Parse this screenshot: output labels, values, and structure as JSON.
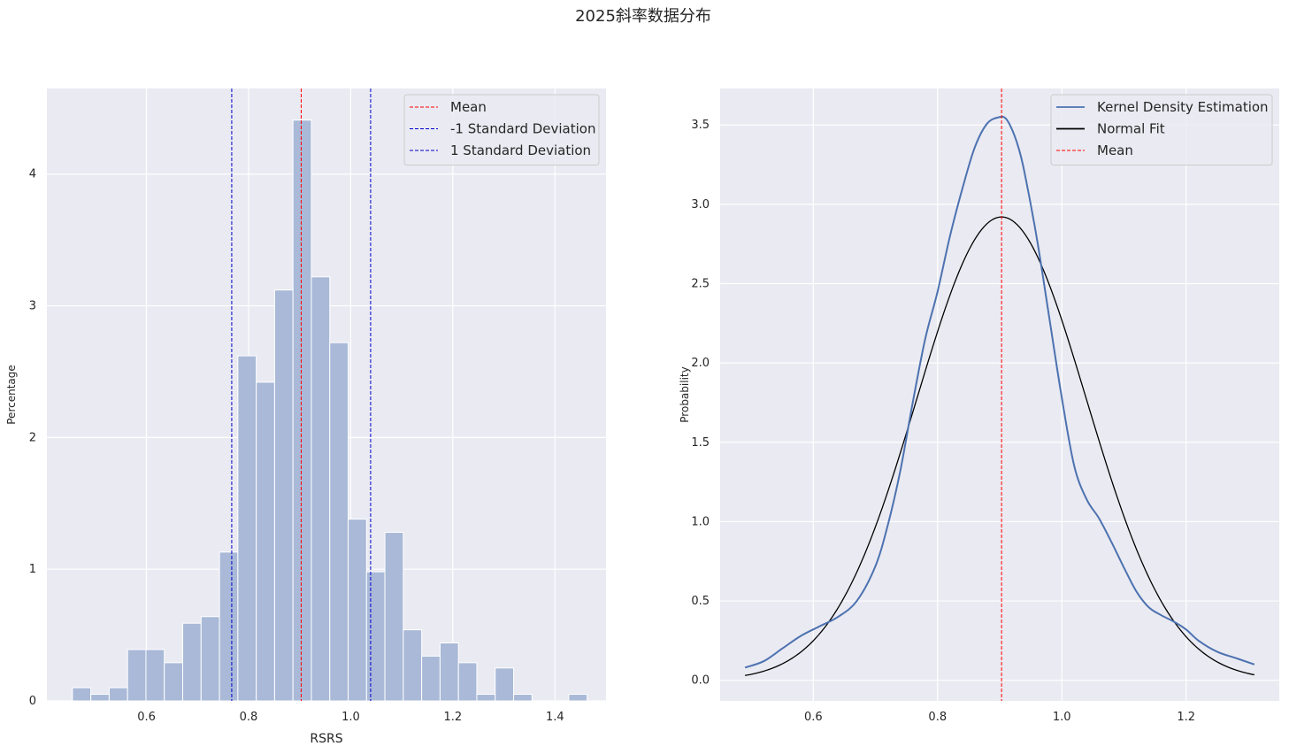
{
  "figure": {
    "title": "2025斜率数据分布"
  },
  "colors": {
    "axes_bg": "#eaeaf2",
    "grid": "#ffffff",
    "hist_bar": "#a9b9d7",
    "kde": "#4c72b0",
    "normal": "#000000",
    "mean": "#ff0000",
    "std": "#0000cc"
  },
  "chart_data": [
    {
      "type": "bar",
      "subtype": "histogram",
      "title": "",
      "xlabel": "RSRS",
      "ylabel": "Percentage",
      "xlim": [
        0.405,
        1.5
      ],
      "ylim": [
        0,
        4.65
      ],
      "xticks": [
        0.6,
        0.8,
        1.0,
        1.2,
        1.4
      ],
      "xtick_labels": [
        "0.6",
        "0.8",
        "1.0",
        "1.2",
        "1.4"
      ],
      "yticks": [
        0,
        1,
        2,
        3,
        4
      ],
      "ytick_labels": [
        "0",
        "1",
        "2",
        "3",
        "4"
      ],
      "grid": true,
      "bin_edges": [
        0.455,
        0.491,
        0.527,
        0.563,
        0.599,
        0.635,
        0.671,
        0.707,
        0.743,
        0.779,
        0.815,
        0.851,
        0.887,
        0.923,
        0.959,
        0.995,
        1.031,
        1.067,
        1.103,
        1.139,
        1.175,
        1.211,
        1.247,
        1.283,
        1.319,
        1.355,
        1.391,
        1.427,
        1.463
      ],
      "values": [
        0.1,
        0.05,
        0.1,
        0.39,
        0.39,
        0.29,
        0.59,
        0.64,
        1.13,
        2.62,
        2.42,
        3.12,
        4.41,
        3.22,
        2.72,
        1.38,
        0.98,
        1.28,
        0.54,
        0.34,
        0.44,
        0.29,
        0.05,
        0.25,
        0.05,
        0,
        0,
        0.05
      ],
      "vlines": [
        {
          "name": "Mean",
          "x": 0.903,
          "color": "#ff0000"
        },
        {
          "name": "-1 Standard Deviation",
          "x": 0.767,
          "color": "#0000cc"
        },
        {
          "name": "1 Standard Deviation",
          "x": 1.039,
          "color": "#0000cc"
        }
      ],
      "legend": {
        "position": "upper-right",
        "entries": [
          {
            "label": "Mean",
            "color": "#ff0000",
            "style": "dashed"
          },
          {
            "label": "-1 Standard Deviation",
            "color": "#0000cc",
            "style": "dashed"
          },
          {
            "label": "1 Standard Deviation",
            "color": "#0000cc",
            "style": "dashed"
          }
        ]
      }
    },
    {
      "type": "line",
      "title": "",
      "xlabel": "",
      "ylabel": "Probability",
      "xlim": [
        0.45,
        1.35
      ],
      "ylim": [
        -0.13,
        3.73
      ],
      "xticks": [
        0.6,
        0.8,
        1.0,
        1.2
      ],
      "xtick_labels": [
        "0.6",
        "0.8",
        "1.0",
        "1.2"
      ],
      "yticks": [
        0.0,
        0.5,
        1.0,
        1.5,
        2.0,
        2.5,
        3.0,
        3.5
      ],
      "ytick_labels": [
        "0.0",
        "0.5",
        "1.0",
        "1.5",
        "2.0",
        "2.5",
        "3.0",
        "3.5"
      ],
      "grid": true,
      "series": [
        {
          "name": "Kernel Density Estimation",
          "color": "#4c72b0",
          "x": [
            0.49,
            0.52,
            0.55,
            0.58,
            0.61,
            0.64,
            0.67,
            0.7,
            0.72,
            0.74,
            0.76,
            0.78,
            0.8,
            0.82,
            0.84,
            0.86,
            0.88,
            0.9,
            0.91,
            0.92,
            0.93,
            0.94,
            0.96,
            0.98,
            1.0,
            1.02,
            1.04,
            1.06,
            1.08,
            1.1,
            1.12,
            1.14,
            1.16,
            1.18,
            1.2,
            1.22,
            1.25,
            1.28,
            1.31
          ],
          "values": [
            0.08,
            0.12,
            0.2,
            0.28,
            0.34,
            0.4,
            0.5,
            0.72,
            0.98,
            1.32,
            1.75,
            2.15,
            2.45,
            2.8,
            3.1,
            3.36,
            3.51,
            3.55,
            3.54,
            3.47,
            3.36,
            3.2,
            2.78,
            2.28,
            1.78,
            1.35,
            1.14,
            1.02,
            0.87,
            0.71,
            0.56,
            0.46,
            0.41,
            0.37,
            0.32,
            0.25,
            0.18,
            0.14,
            0.1
          ]
        },
        {
          "name": "Normal Fit",
          "color": "#000000",
          "mean": 0.903,
          "std": 0.1366,
          "x_range": [
            0.49,
            1.31
          ]
        }
      ],
      "vlines": [
        {
          "name": "Mean",
          "x": 0.903,
          "color": "#ff0000"
        }
      ],
      "legend": {
        "position": "upper-right",
        "entries": [
          {
            "label": "Kernel Density Estimation",
            "color": "#4c72b0",
            "style": "solid"
          },
          {
            "label": "Normal Fit",
            "color": "#000000",
            "style": "solid"
          },
          {
            "label": "Mean",
            "color": "#ff0000",
            "style": "dashed"
          }
        ]
      }
    }
  ]
}
